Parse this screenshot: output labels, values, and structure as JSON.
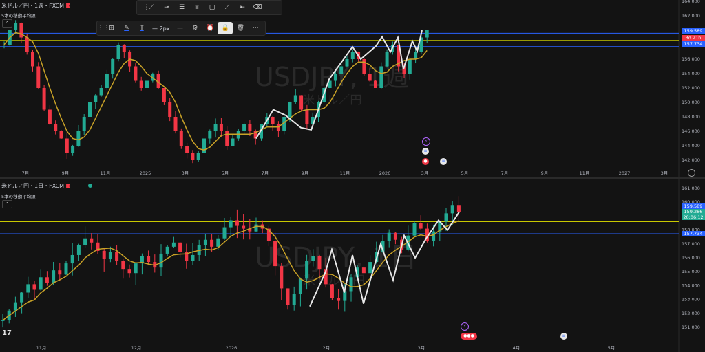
{
  "top_chart": {
    "title": "米ドル／円・1週・FXCM",
    "ma_label": "5本の移動平均線",
    "watermark_main": "USDJPY, 1週",
    "watermark_sub": "米ドル／円",
    "price_labels": [
      "164.000",
      "162.000",
      "160.000",
      "158.000",
      "156.000",
      "154.000",
      "152.000",
      "150.000",
      "148.000",
      "146.000",
      "144.000",
      "142.000"
    ],
    "time_labels": [
      "7月",
      "9月",
      "11月",
      "2025",
      "3月",
      "5月",
      "7月",
      "9月",
      "11月",
      "2026",
      "3月",
      "5月",
      "7月",
      "9月",
      "11月",
      "2027",
      "3月"
    ],
    "tags": [
      {
        "text": "159.589",
        "color": "#2962ff"
      },
      {
        "text": "3d 21h",
        "color": "#f23645"
      },
      {
        "text": "157.734",
        "color": "#2962ff"
      }
    ],
    "h_lines": [
      {
        "price": 159.589,
        "color": "#2962ff"
      },
      {
        "price": 158.6,
        "color": "#c8c800"
      },
      {
        "price": 157.734,
        "color": "#2962ff"
      }
    ]
  },
  "bottom_chart": {
    "title": "米ドル／円・1日・FXCM",
    "ma_label": "5本の移動平均線",
    "watermark_main": "USDJPY, 1日",
    "watermark_sub": "米ドル／円",
    "price_labels": [
      "161.000",
      "160.000",
      "159.000",
      "158.000",
      "157.000",
      "156.000",
      "155.000",
      "154.000",
      "153.000",
      "152.000",
      "151.000"
    ],
    "time_labels": [
      "11月",
      "12月",
      "2026",
      "2月",
      "3月",
      "4月",
      "5月"
    ],
    "tags": [
      {
        "text": "159.589",
        "color": "#2962ff"
      },
      {
        "text": "159.286",
        "color": "#22ab94"
      },
      {
        "text": "20:06:12",
        "color": "#22ab94"
      },
      {
        "text": "157.734",
        "color": "#2962ff"
      }
    ],
    "h_lines": [
      {
        "price": 159.589,
        "color": "#2962ff"
      },
      {
        "price": 158.6,
        "color": "#c8c800"
      },
      {
        "price": 157.734,
        "color": "#2962ff"
      }
    ]
  },
  "toolbar_top": {
    "icons": [
      "cursor-icon",
      "trend-line-icon",
      "parallel-channel-icon",
      "fib-icon",
      "rectangle-icon",
      "brush-icon",
      "horizontal-ray-icon",
      "eraser-icon"
    ]
  },
  "toolbar_line": {
    "width_label": "2px"
  },
  "colors": {
    "up": "#22ab94",
    "down": "#f23645",
    "ma": "#c9a227",
    "zigzag": "#e8e8e8",
    "bg": "#131313"
  }
}
